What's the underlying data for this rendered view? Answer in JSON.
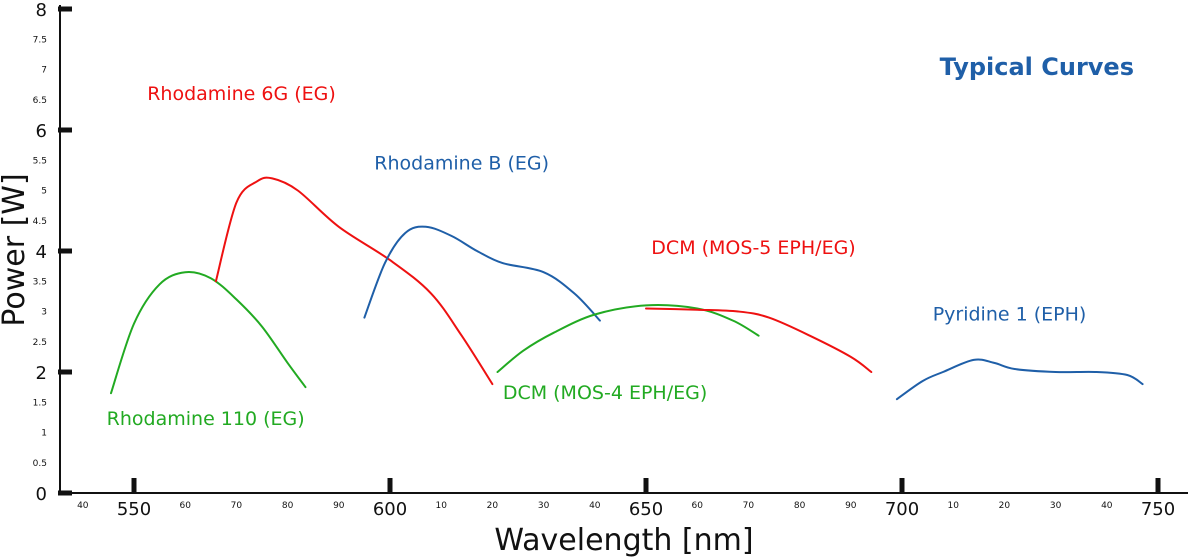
{
  "chart_data": {
    "type": "line",
    "title": "Typical Curves",
    "title_color": "#1f5fa8",
    "xlabel": "Wavelength [nm]",
    "ylabel": "Power [W]",
    "xlim": [
      530,
      755
    ],
    "ylim": [
      0,
      8
    ],
    "x_major_ticks": [
      {
        "value": 550,
        "label": "550"
      },
      {
        "value": 600,
        "label": "600"
      },
      {
        "value": 650,
        "label": "650"
      },
      {
        "value": 700,
        "label": "700"
      },
      {
        "value": 750,
        "label": "750"
      }
    ],
    "x_minor_ticks": [
      {
        "value": 540,
        "label": "40"
      },
      {
        "value": 560,
        "label": "60"
      },
      {
        "value": 570,
        "label": "70"
      },
      {
        "value": 580,
        "label": "80"
      },
      {
        "value": 590,
        "label": "90"
      },
      {
        "value": 610,
        "label": "10"
      },
      {
        "value": 620,
        "label": "20"
      },
      {
        "value": 630,
        "label": "30"
      },
      {
        "value": 640,
        "label": "40"
      },
      {
        "value": 660,
        "label": "60"
      },
      {
        "value": 670,
        "label": "70"
      },
      {
        "value": 680,
        "label": "80"
      },
      {
        "value": 690,
        "label": "90"
      },
      {
        "value": 710,
        "label": "10"
      },
      {
        "value": 720,
        "label": "20"
      },
      {
        "value": 730,
        "label": "30"
      },
      {
        "value": 740,
        "label": "40"
      }
    ],
    "y_major_ticks": [
      {
        "value": 0,
        "label": "0"
      },
      {
        "value": 2,
        "label": "2"
      },
      {
        "value": 4,
        "label": "4"
      },
      {
        "value": 6,
        "label": "6"
      },
      {
        "value": 8,
        "label": "8"
      }
    ],
    "y_minor_ticks": [
      {
        "value": 0.5,
        "label": "0.5"
      },
      {
        "value": 1,
        "label": "1"
      },
      {
        "value": 1.5,
        "label": "1.5"
      },
      {
        "value": 2.5,
        "label": "2.5"
      },
      {
        "value": 3,
        "label": "3"
      },
      {
        "value": 3.5,
        "label": "3.5"
      },
      {
        "value": 4.5,
        "label": "4.5"
      },
      {
        "value": 5,
        "label": "5"
      },
      {
        "value": 5.5,
        "label": "5.5"
      },
      {
        "value": 6.5,
        "label": "6.5"
      },
      {
        "value": 7,
        "label": "7"
      },
      {
        "value": 7.5,
        "label": "7.5"
      }
    ],
    "series": [
      {
        "name": "Rhodamine 110 (EG)",
        "color": "#22aa22",
        "points": [
          [
            545.5,
            1.65
          ],
          [
            550,
            2.8
          ],
          [
            555,
            3.45
          ],
          [
            560,
            3.65
          ],
          [
            565,
            3.55
          ],
          [
            570,
            3.2
          ],
          [
            575,
            2.75
          ],
          [
            580,
            2.15
          ],
          [
            583.5,
            1.75
          ]
        ]
      },
      {
        "name": "Rhodamine 6G (EG)",
        "color": "#ee1111",
        "points": [
          [
            566,
            3.5
          ],
          [
            570,
            4.8
          ],
          [
            574,
            5.15
          ],
          [
            577,
            5.2
          ],
          [
            582,
            5.0
          ],
          [
            590,
            4.4
          ],
          [
            600,
            3.85
          ],
          [
            608,
            3.3
          ],
          [
            614,
            2.6
          ],
          [
            620,
            1.8
          ]
        ]
      },
      {
        "name": "Rhodamine B (EG)",
        "color": "#1f5fa8",
        "points": [
          [
            595,
            2.9
          ],
          [
            599,
            3.8
          ],
          [
            603,
            4.3
          ],
          [
            607,
            4.4
          ],
          [
            612,
            4.25
          ],
          [
            617,
            4.0
          ],
          [
            622,
            3.8
          ],
          [
            630,
            3.65
          ],
          [
            636,
            3.3
          ],
          [
            641,
            2.85
          ]
        ]
      },
      {
        "name": "DCM (MOS-4 EPH/EG)",
        "color": "#22aa22",
        "points": [
          [
            621,
            2.0
          ],
          [
            626,
            2.35
          ],
          [
            632,
            2.65
          ],
          [
            640,
            2.95
          ],
          [
            650,
            3.1
          ],
          [
            660,
            3.05
          ],
          [
            667,
            2.85
          ],
          [
            672,
            2.6
          ]
        ]
      },
      {
        "name": "DCM (MOS-5 EPH/EG)",
        "color": "#ee1111",
        "points": [
          [
            650,
            3.05
          ],
          [
            660,
            3.03
          ],
          [
            668,
            3.0
          ],
          [
            674,
            2.9
          ],
          [
            682,
            2.6
          ],
          [
            690,
            2.25
          ],
          [
            694,
            2.0
          ]
        ]
      },
      {
        "name": "Pyridine 1 (EPH)",
        "color": "#1f5fa8",
        "points": [
          [
            699,
            1.55
          ],
          [
            704,
            1.85
          ],
          [
            708,
            2.0
          ],
          [
            714,
            2.2
          ],
          [
            718,
            2.15
          ],
          [
            722,
            2.05
          ],
          [
            730,
            2.0
          ],
          [
            738,
            2.0
          ],
          [
            744,
            1.95
          ],
          [
            747,
            1.8
          ]
        ]
      }
    ],
    "annotations": [
      {
        "series": 0,
        "text": "Rhodamine 110 (EG)",
        "color": "#22aa22",
        "anchor_x": 564,
        "anchor_y": 1.12
      },
      {
        "series": 1,
        "text": "Rhodamine 6G (EG)",
        "color": "#ee1111",
        "anchor_x": 571,
        "anchor_y": 6.5
      },
      {
        "series": 2,
        "text": "Rhodamine B (EG)",
        "color": "#1f5fa8",
        "anchor_x": 614,
        "anchor_y": 5.35
      },
      {
        "series": 3,
        "text": "DCM (MOS-4 EPH/EG)",
        "color": "#22aa22",
        "anchor_x": 642,
        "anchor_y": 1.55
      },
      {
        "series": 4,
        "text": "DCM (MOS-5 EPH/EG)",
        "color": "#ee1111",
        "anchor_x": 671,
        "anchor_y": 3.95
      },
      {
        "series": 5,
        "text": "Pyridine 1 (EPH)",
        "color": "#1f5fa8",
        "anchor_x": 721,
        "anchor_y": 2.85
      }
    ],
    "grid": false,
    "legend": "none (series labelled inline)"
  }
}
